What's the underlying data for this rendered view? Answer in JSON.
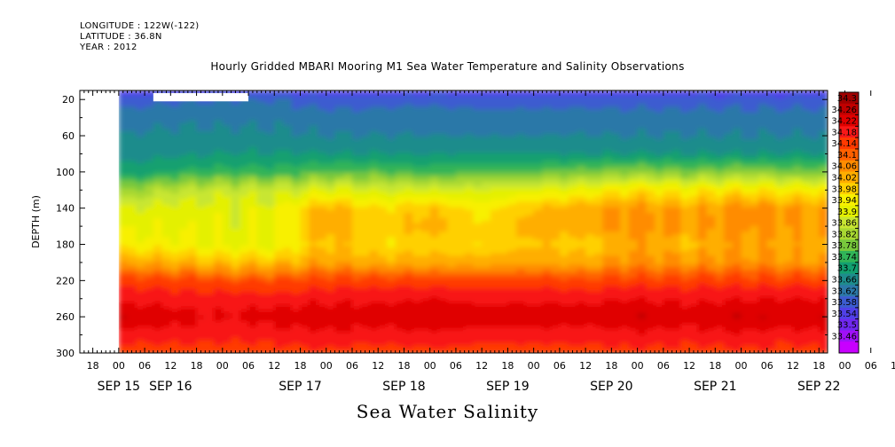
{
  "header": {
    "longitude": "LONGITUDE : 122W(-122)",
    "latitude": "LATITUDE : 36.8N",
    "year": "YEAR : 2012"
  },
  "title": "Hourly Gridded MBARI Mooring M1 Sea Water Temperature and Salinity Observations",
  "footer": "Sea Water Salinity",
  "chart_data": {
    "type": "heatmap",
    "title": "Hourly Gridded MBARI Mooring M1 Sea Water Temperature and Salinity Observations",
    "ylabel": "DEPTH (m)",
    "xlabel": "",
    "y_axis": {
      "ticks": [
        20,
        60,
        100,
        140,
        180,
        220,
        260,
        300
      ],
      "range": [
        10,
        300
      ],
      "inverted": true
    },
    "x_axis": {
      "hour_ticks": [
        "18",
        "00",
        "06",
        "12",
        "18",
        "00",
        "06",
        "12",
        "18",
        "00",
        "06",
        "12",
        "18",
        "00",
        "06",
        "12",
        "18",
        "00",
        "06",
        "12",
        "18",
        "00",
        "06",
        "12",
        "18",
        "00",
        "06",
        "12",
        "18",
        "00",
        "06",
        "12",
        "18",
        "00",
        "06",
        "12",
        "18",
        "00",
        "06",
        "12"
      ],
      "day_labels": [
        {
          "label": "SEP 15",
          "tick_index": 1
        },
        {
          "label": "SEP 16",
          "tick_index": 3
        },
        {
          "label": "SEP 17",
          "tick_index": 8
        },
        {
          "label": "SEP 18",
          "tick_index": 12
        },
        {
          "label": "SEP 19",
          "tick_index": 16
        },
        {
          "label": "SEP 20",
          "tick_index": 20
        },
        {
          "label": "SEP 21",
          "tick_index": 24
        },
        {
          "label": "SEP 22",
          "tick_index": 28
        }
      ],
      "range": [
        "SEP 15 15:00",
        "SEP 22 20:00"
      ]
    },
    "data_start": "SEP 16 00:00",
    "missing_block": {
      "from": "SEP 16 08:00",
      "to": "SEP 17 06:00",
      "depth": [
        10,
        22
      ]
    },
    "colorbar": {
      "levels": [
        "34.3",
        "34.26",
        "34.22",
        "34.18",
        "34.14",
        "34.1",
        "34.06",
        "34.02",
        "33.98",
        "33.94",
        "33.9",
        "33.86",
        "33.82",
        "33.78",
        "33.74",
        "33.7",
        "33.66",
        "33.62",
        "33.58",
        "33.54",
        "33.5",
        "33.46"
      ],
      "colors": [
        "#a00000",
        "#c00000",
        "#e00000",
        "#f81818",
        "#ff3a00",
        "#ff6000",
        "#ff8c00",
        "#ffae00",
        "#ffd000",
        "#f8f000",
        "#e4f000",
        "#c8e632",
        "#a8d832",
        "#78c83c",
        "#30b458",
        "#12a070",
        "#1e8c8c",
        "#2c78a8",
        "#3c5cd0",
        "#5040e8",
        "#7028f0",
        "#a010f8",
        "#c800ff"
      ]
    },
    "profile_depths": [
      10,
      20,
      40,
      60,
      80,
      100,
      120,
      140,
      160,
      180,
      200,
      220,
      240,
      260,
      280,
      300
    ],
    "columns": [
      {
        "x_hours": 0,
        "salinity": [
          33.54,
          33.6,
          33.64,
          33.66,
          33.68,
          33.72,
          33.82,
          33.9,
          33.93,
          33.96,
          34.05,
          34.16,
          34.21,
          34.26,
          34.2,
          34.16
        ]
      },
      {
        "x_hours": 12,
        "salinity": [
          33.56,
          33.61,
          33.65,
          33.67,
          33.69,
          33.74,
          33.86,
          33.92,
          33.93,
          33.95,
          34.04,
          34.16,
          34.2,
          34.24,
          34.2,
          34.16
        ]
      },
      {
        "x_hours": 24,
        "salinity": [
          33.56,
          33.62,
          33.65,
          33.67,
          33.7,
          33.76,
          33.88,
          33.92,
          33.92,
          33.93,
          34.02,
          34.14,
          34.2,
          34.22,
          34.19,
          34.16
        ]
      },
      {
        "x_hours": 36,
        "salinity": [
          33.56,
          33.62,
          33.65,
          33.67,
          33.7,
          33.76,
          33.88,
          33.92,
          33.92,
          33.93,
          34.02,
          34.14,
          34.2,
          34.24,
          34.2,
          34.16
        ]
      },
      {
        "x_hours": 48,
        "salinity": [
          33.55,
          33.6,
          33.64,
          33.66,
          33.7,
          33.78,
          33.92,
          34.04,
          34.06,
          34.02,
          34.06,
          34.16,
          34.21,
          34.25,
          34.21,
          34.17
        ]
      },
      {
        "x_hours": 60,
        "salinity": [
          33.55,
          33.6,
          33.64,
          33.66,
          33.7,
          33.78,
          33.9,
          33.98,
          34.0,
          33.98,
          34.04,
          34.16,
          34.21,
          34.24,
          34.2,
          34.16
        ]
      },
      {
        "x_hours": 72,
        "salinity": [
          33.56,
          33.61,
          33.64,
          33.66,
          33.7,
          33.76,
          33.9,
          34.02,
          34.04,
          34.0,
          34.04,
          34.16,
          34.22,
          34.26,
          34.21,
          34.17
        ]
      },
      {
        "x_hours": 84,
        "salinity": [
          33.55,
          33.6,
          33.64,
          33.66,
          33.7,
          33.78,
          33.9,
          33.96,
          33.98,
          33.98,
          34.04,
          34.15,
          34.21,
          34.24,
          34.2,
          34.16
        ]
      },
      {
        "x_hours": 96,
        "salinity": [
          33.55,
          33.6,
          33.64,
          33.66,
          33.7,
          33.78,
          33.92,
          34.02,
          34.04,
          34.02,
          34.05,
          34.16,
          34.21,
          34.25,
          34.2,
          34.16
        ]
      },
      {
        "x_hours": 108,
        "salinity": [
          33.55,
          33.6,
          33.64,
          33.66,
          33.7,
          33.8,
          33.94,
          34.04,
          34.04,
          34.0,
          34.04,
          34.15,
          34.21,
          34.24,
          34.2,
          34.16
        ]
      },
      {
        "x_hours": 120,
        "salinity": [
          33.55,
          33.6,
          33.64,
          33.66,
          33.7,
          33.82,
          33.98,
          34.07,
          34.08,
          34.06,
          34.08,
          34.16,
          34.22,
          34.26,
          34.21,
          34.17
        ]
      },
      {
        "x_hours": 132,
        "salinity": [
          33.55,
          33.6,
          33.64,
          33.66,
          33.7,
          33.8,
          33.96,
          34.04,
          34.05,
          34.02,
          34.06,
          34.16,
          34.21,
          34.24,
          34.2,
          34.16
        ]
      },
      {
        "x_hours": 144,
        "salinity": [
          33.55,
          33.6,
          33.64,
          33.66,
          33.7,
          33.82,
          33.98,
          34.08,
          34.08,
          34.06,
          34.08,
          34.16,
          34.22,
          34.26,
          34.21,
          34.17
        ]
      },
      {
        "x_hours": 156,
        "salinity": [
          33.55,
          33.6,
          33.64,
          33.66,
          33.7,
          33.8,
          33.96,
          34.06,
          34.06,
          34.04,
          34.06,
          34.16,
          34.22,
          34.25,
          34.2,
          34.16
        ]
      },
      {
        "x_hours": 164,
        "salinity": [
          33.55,
          33.6,
          33.64,
          33.66,
          33.7,
          33.8,
          33.96,
          34.06,
          34.06,
          34.04,
          34.06,
          34.16,
          34.22,
          34.26,
          34.21,
          34.17
        ]
      }
    ],
    "grid": false,
    "legend": "colorbar-right"
  }
}
